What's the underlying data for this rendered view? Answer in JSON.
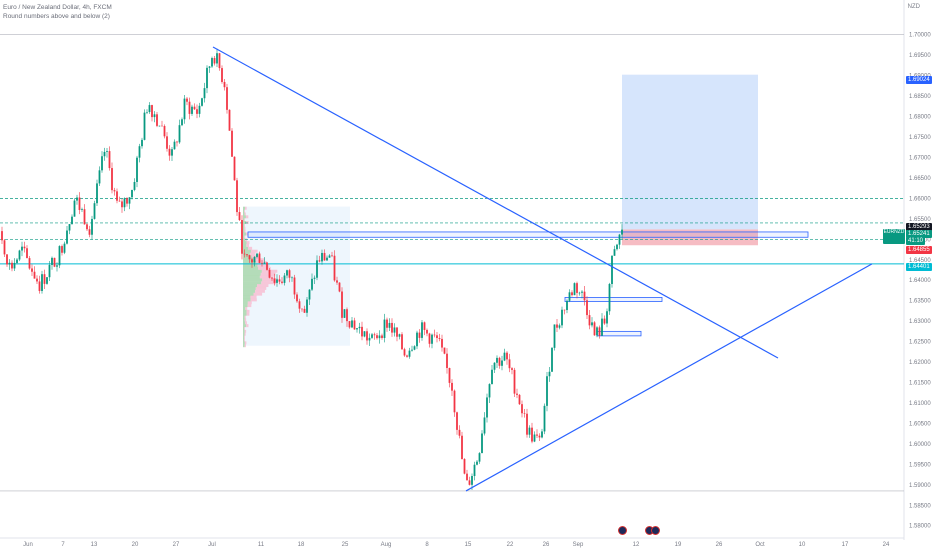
{
  "header": {
    "title": "Euro / New Zealand Dollar, 4h, FXCM",
    "subtitle": "Round numbers above and below (2)",
    "currency": "NZD"
  },
  "colors": {
    "up": "#089981",
    "down": "#f23645",
    "trendline": "#2962ff",
    "dashed_level": "#089981",
    "cyan_level": "#00bcd4",
    "target_zone": "#cfe0fb",
    "stop_zone": "#f4b0b8",
    "box": "#2962ff"
  },
  "price_tags": {
    "target": "1.69024",
    "top": "1.65293",
    "current": "1.65241",
    "countdown": "41:10",
    "stop": "1.64855",
    "level": "1.64401"
  },
  "symbol_tag": {
    "symbol": "EURNZD"
  },
  "chart_data": {
    "type": "candlestick",
    "y_ticks": [
      "1.70000",
      "1.69500",
      "1.69000",
      "1.68500",
      "1.68000",
      "1.67500",
      "1.67000",
      "1.66500",
      "1.66000",
      "1.65500",
      "1.65000",
      "1.64500",
      "1.64000",
      "1.63500",
      "1.63000",
      "1.62500",
      "1.62000",
      "1.61500",
      "1.61000",
      "1.60500",
      "1.60000",
      "1.59500",
      "1.59000",
      "1.58500",
      "1.58000"
    ],
    "x_ticks": [
      "Jun",
      "7",
      "13",
      "20",
      "27",
      "Jul",
      "11",
      "18",
      "25",
      "Aug",
      "8",
      "15",
      "22",
      "26",
      "Sep",
      "12",
      "19",
      "26",
      "Oct",
      "10",
      "17",
      "24"
    ],
    "ylim": [
      1.5785,
      1.702
    ],
    "price_path": [
      [
        0,
        1.652
      ],
      [
        10,
        1.643
      ],
      [
        22,
        1.647
      ],
      [
        40,
        1.639
      ],
      [
        60,
        1.647
      ],
      [
        75,
        1.66
      ],
      [
        90,
        1.653
      ],
      [
        105,
        1.672
      ],
      [
        118,
        1.657
      ],
      [
        132,
        1.662
      ],
      [
        148,
        1.684
      ],
      [
        160,
        1.678
      ],
      [
        172,
        1.67
      ],
      [
        185,
        1.683
      ],
      [
        198,
        1.681
      ],
      [
        213,
        1.696
      ],
      [
        225,
        1.688
      ],
      [
        238,
        1.655
      ],
      [
        245,
        1.644
      ],
      [
        260,
        1.646
      ],
      [
        275,
        1.64
      ],
      [
        290,
        1.641
      ],
      [
        305,
        1.632
      ],
      [
        318,
        1.645
      ],
      [
        330,
        1.646
      ],
      [
        342,
        1.633
      ],
      [
        358,
        1.628
      ],
      [
        372,
        1.625
      ],
      [
        388,
        1.63
      ],
      [
        405,
        1.622
      ],
      [
        420,
        1.628
      ],
      [
        438,
        1.625
      ],
      [
        452,
        1.614
      ],
      [
        466,
        1.589
      ],
      [
        478,
        1.597
      ],
      [
        492,
        1.62
      ],
      [
        505,
        1.621
      ],
      [
        518,
        1.612
      ],
      [
        528,
        1.603
      ],
      [
        540,
        1.6
      ],
      [
        553,
        1.627
      ],
      [
        565,
        1.634
      ],
      [
        575,
        1.639
      ],
      [
        585,
        1.635
      ],
      [
        595,
        1.626
      ],
      [
        605,
        1.63
      ],
      [
        612,
        1.644
      ],
      [
        622,
        1.6524
      ]
    ],
    "levels": [
      1.7,
      1.66,
      1.654,
      1.65,
      1.644,
      1.5885
    ],
    "trendlines": [
      {
        "from": [
          213,
          1.697
        ],
        "to": [
          778,
          1.621
        ]
      },
      {
        "from": [
          466,
          1.5885
        ],
        "to": [
          872,
          1.644
        ]
      }
    ],
    "position": {
      "entry": 1.65241,
      "stop": 1.64855,
      "target": 1.69024,
      "x_start": 622,
      "x_end": 758
    },
    "boxes": [
      {
        "x0": 248,
        "x1": 808,
        "y0": 1.6518,
        "y1": 1.6505
      },
      {
        "x0": 565,
        "x1": 662,
        "y0": 1.6358,
        "y1": 1.6348
      },
      {
        "x0": 597,
        "x1": 641,
        "y0": 1.6275,
        "y1": 1.6264
      }
    ],
    "volume_profile": {
      "x0": 243,
      "x1": 350,
      "y_top": 1.658,
      "y_bot": 1.624,
      "poc": 1.641
    }
  }
}
